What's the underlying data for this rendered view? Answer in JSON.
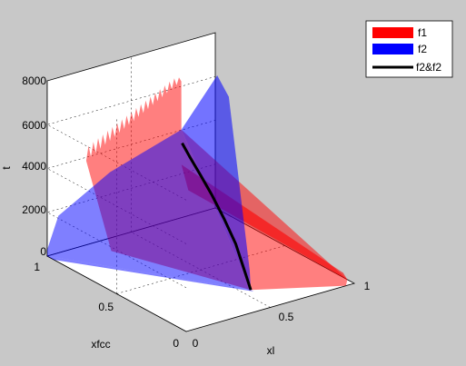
{
  "chart_data": {
    "type": "surface",
    "title": "",
    "xlabel": "xl",
    "ylabel": "xfcc",
    "zlabel": "t",
    "xlim": [
      0,
      1
    ],
    "ylim": [
      0,
      1
    ],
    "zlim": [
      0,
      8000
    ],
    "x_ticks": [
      "0",
      "0.5",
      "1"
    ],
    "y_ticks": [
      "0",
      "0.5",
      "1"
    ],
    "z_ticks": [
      "0",
      "2000",
      "4000",
      "6000",
      "8000"
    ],
    "grid": true,
    "view": "3d-perspective",
    "legend_position": "top-right",
    "series": [
      {
        "name": "f1",
        "kind": "surface",
        "color": "#ff0000",
        "opacity": 0.5,
        "max_t": 8000
      },
      {
        "name": "f2",
        "kind": "surface",
        "color": "#0000ff",
        "opacity": 0.5,
        "max_t": 7500
      },
      {
        "name": "f2&f2",
        "kind": "intersection-curve",
        "color": "#000000",
        "points": [
          {
            "xl": 0.0,
            "xfcc": 0.0,
            "t": 0
          },
          {
            "xl": 0.05,
            "xfcc": 0.05,
            "t": 900
          },
          {
            "xl": 0.1,
            "xfcc": 0.1,
            "t": 1800
          },
          {
            "xl": 0.18,
            "xfcc": 0.18,
            "t": 2700
          },
          {
            "xl": 0.27,
            "xfcc": 0.27,
            "t": 3500
          },
          {
            "xl": 0.36,
            "xfcc": 0.36,
            "t": 4100
          },
          {
            "xl": 0.45,
            "xfcc": 0.45,
            "t": 4600
          },
          {
            "xl": 0.52,
            "xfcc": 0.52,
            "t": 5000
          }
        ]
      }
    ]
  },
  "colors": {
    "background": "#c8c8c8",
    "axes_background": "#ffffff",
    "f1": "#ff0000",
    "f2": "#0000ff",
    "curve": "#000000"
  }
}
